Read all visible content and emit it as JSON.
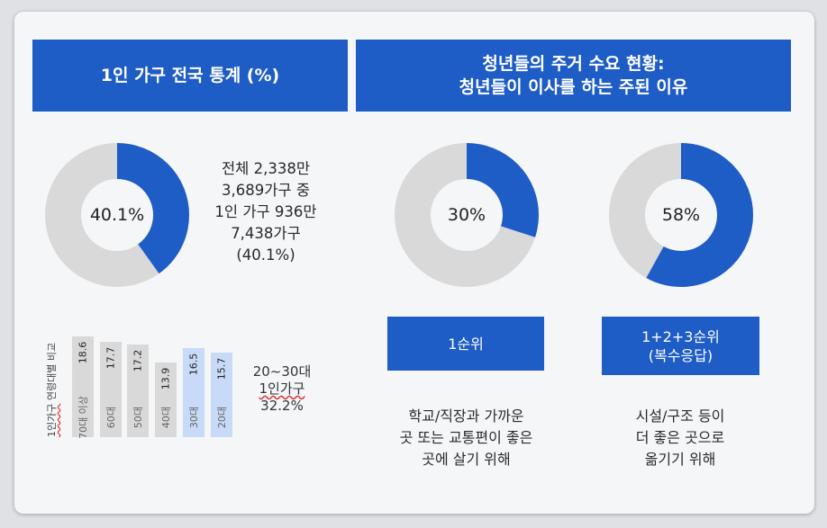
{
  "left_panel": {
    "title": "1인 가구 전국 통계 (%)",
    "donut": {
      "value": 40.1,
      "label": "40.1%"
    },
    "stats_text": "전체 2,338만\n3,689가구 중\n1인 가구 936만\n7,438가구\n(40.1%)",
    "bar_chart": {
      "axis_label_underlined": "1인가구",
      "axis_label_rest": " 연령대별 비교",
      "bars": [
        {
          "category": "70대 이상",
          "value": 18.6,
          "highlight": false
        },
        {
          "category": "60대",
          "value": 17.7,
          "highlight": false
        },
        {
          "category": "50대",
          "value": 17.2,
          "highlight": false
        },
        {
          "category": "40대",
          "value": 13.9,
          "highlight": false
        },
        {
          "category": "30대",
          "value": 16.5,
          "highlight": true
        },
        {
          "category": "20대",
          "value": 15.7,
          "highlight": true
        }
      ],
      "youth_line1": "20~30대",
      "youth_line2": "1인가구",
      "youth_line3": "32.2%"
    }
  },
  "right_panel": {
    "title": "청년들의 주거 수요 현황:\n청년들이 이사를 하는 주된 이유",
    "donuts": [
      {
        "value": 30,
        "label": "30%",
        "rank_label": "1순위",
        "description": "학교/직장과 가까운\n곳 또는 교통편이 좋은\n곳에 살기 위해"
      },
      {
        "value": 58,
        "label": "58%",
        "rank_label": "1+2+3순위\n(복수응답)",
        "description": "시설/구조 등이\n더 좋은 곳으로\n옮기기 위해"
      }
    ]
  },
  "colors": {
    "accent": "#1e5cc6",
    "track": "#d9d9d9",
    "highlight_bar": "#c7daf8"
  }
}
